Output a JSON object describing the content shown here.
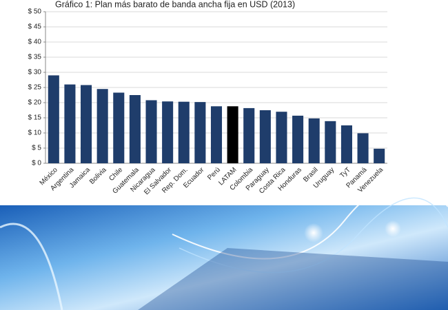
{
  "chart_data": {
    "type": "bar",
    "title": "Gráfico 1: Plan más barato de banda ancha fija en USD (2013)",
    "categories": [
      "México",
      "Argentina",
      "Jamaica",
      "Bolivia",
      "Chile",
      "Guatemala",
      "Nicaragua",
      "El Salvador",
      "Rep. Dom.",
      "Ecuador",
      "Perú",
      "LATAM",
      "Colombia",
      "Paraguay",
      "Costa Rica",
      "Honduras",
      "Brasil",
      "Uruguay",
      "TyT",
      "Panamá",
      "Venezuela"
    ],
    "values": [
      29,
      26,
      25.8,
      24.5,
      23.3,
      22.5,
      20.8,
      20.4,
      20.3,
      20.2,
      18.8,
      18.8,
      18.2,
      17.5,
      17,
      15.7,
      14.8,
      13.9,
      12.5,
      9.9,
      4.8
    ],
    "colors": [
      "#1f3d6b",
      "#1f3d6b",
      "#1f3d6b",
      "#1f3d6b",
      "#1f3d6b",
      "#1f3d6b",
      "#1f3d6b",
      "#1f3d6b",
      "#1f3d6b",
      "#1f3d6b",
      "#1f3d6b",
      "#000000",
      "#1f3d6b",
      "#1f3d6b",
      "#1f3d6b",
      "#1f3d6b",
      "#1f3d6b",
      "#1f3d6b",
      "#1f3d6b",
      "#1f3d6b",
      "#1f3d6b"
    ],
    "ylim": [
      0,
      50
    ],
    "yticks": [
      {
        "value": 0,
        "label": "$ 0"
      },
      {
        "value": 5,
        "label": "$ 5"
      },
      {
        "value": 10,
        "label": "$ 10"
      },
      {
        "value": 15,
        "label": "$ 15"
      },
      {
        "value": 20,
        "label": "$ 20"
      },
      {
        "value": 25,
        "label": "$ 25"
      },
      {
        "value": 30,
        "label": "$ 30"
      },
      {
        "value": 35,
        "label": "$ 35"
      },
      {
        "value": 40,
        "label": "$ 40"
      },
      {
        "value": 45,
        "label": "$ 45"
      },
      {
        "value": 50,
        "label": "$ 50"
      }
    ],
    "grid": true
  }
}
